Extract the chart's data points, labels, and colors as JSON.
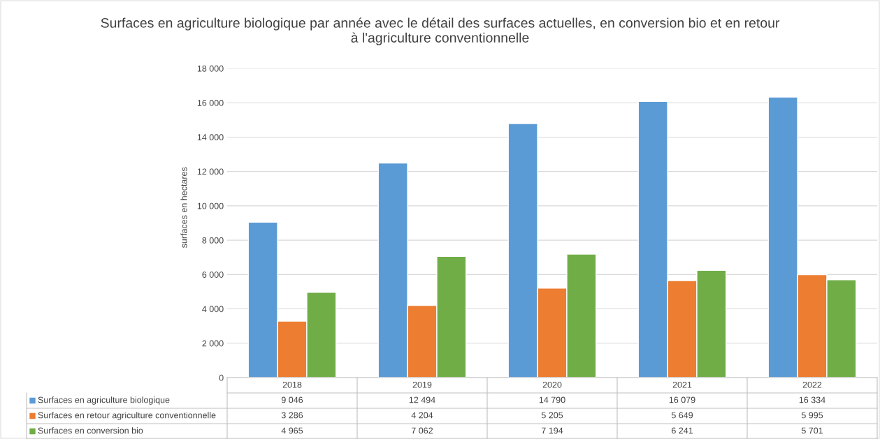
{
  "chart_data": {
    "type": "bar",
    "title": "Surfaces en agriculture biologique par année avec le détail des surfaces actuelles, en conversion bio et en retour\nà l'agriculture conventionnelle",
    "ylabel": "surfaces en hectares",
    "categories": [
      "2018",
      "2019",
      "2020",
      "2021",
      "2022"
    ],
    "series": [
      {
        "name": "Surfaces en agriculture biologique",
        "color": "#5b9bd5",
        "values": [
          9046,
          12494,
          14790,
          16079,
          16334
        ],
        "value_labels": [
          "9 046",
          "12 494",
          "14 790",
          "16 079",
          "16 334"
        ]
      },
      {
        "name": "Surfaces en retour agriculture conventionnelle",
        "color": "#ed7d31",
        "values": [
          3286,
          4204,
          5205,
          5649,
          5995
        ],
        "value_labels": [
          "3 286",
          "4 204",
          "5 205",
          "5 649",
          "5 995"
        ]
      },
      {
        "name": "Surfaces en conversion bio",
        "color": "#70ad47",
        "values": [
          4965,
          7062,
          7194,
          6241,
          5701
        ],
        "value_labels": [
          "4 965",
          "7 062",
          "7 194",
          "6 241",
          "5 701"
        ]
      }
    ],
    "ylim": [
      0,
      18000
    ],
    "yticks": [
      0,
      {
        "value": 2000,
        "label": "2 000"
      },
      {
        "value": 4000,
        "label": "4 000"
      },
      {
        "value": 6000,
        "label": "6 000"
      },
      {
        "value": 8000,
        "label": "8 000"
      },
      {
        "value": 10000,
        "label": "10 000"
      },
      {
        "value": 12000,
        "label": "12 000"
      },
      {
        "value": 14000,
        "label": "14 000"
      },
      {
        "value": 16000,
        "label": "16 000"
      },
      {
        "value": 18000,
        "label": "18 000"
      }
    ],
    "grid": "y",
    "legend": "bottom"
  }
}
